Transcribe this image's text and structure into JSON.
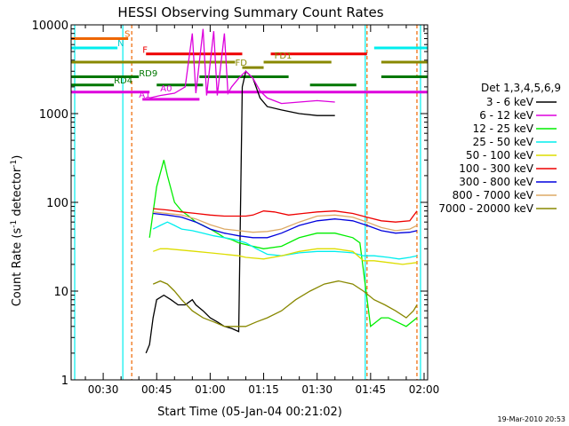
{
  "chart_data": {
    "type": "line",
    "title": "HESSI Observing Summary Count Rates",
    "xlabel": "Start Time (05-Jan-04 00:21:02)",
    "ylabel_main": "Count Rate (s",
    "ylabel_sup1": "-1",
    "ylabel_mid": " detector",
    "ylabel_sup2": "-1",
    "ylabel_end": ")",
    "xlim": [
      21,
      121
    ],
    "ylim": [
      1,
      10000
    ],
    "yscale": "log",
    "x_ticks": [
      {
        "v": 30,
        "label": "00:30"
      },
      {
        "v": 45,
        "label": "00:45"
      },
      {
        "v": 60,
        "label": "01:00"
      },
      {
        "v": 75,
        "label": "01:15"
      },
      {
        "v": 90,
        "label": "01:30"
      },
      {
        "v": 105,
        "label": "01:45"
      },
      {
        "v": 120,
        "label": "02:00"
      }
    ],
    "y_ticks": [
      {
        "v": 1,
        "label": "1"
      },
      {
        "v": 10,
        "label": "10"
      },
      {
        "v": 100,
        "label": "100"
      },
      {
        "v": 1000,
        "label": "1000"
      },
      {
        "v": 10000,
        "label": "10000"
      }
    ],
    "legend_title": "Det 1,3,4,5,6,9",
    "legend_position": "right",
    "footer": "19-Mar-2010 20:53",
    "series": [
      {
        "name": "3 - 6 keV",
        "color": "#000000",
        "values": [
          [
            42,
            2
          ],
          [
            43,
            2.5
          ],
          [
            44,
            5
          ],
          [
            45,
            8
          ],
          [
            47,
            9
          ],
          [
            49,
            8
          ],
          [
            51,
            7
          ],
          [
            53,
            7
          ],
          [
            55,
            8
          ],
          [
            56,
            7
          ],
          [
            58,
            6
          ],
          [
            60,
            5
          ],
          [
            62,
            4.5
          ],
          [
            64,
            4
          ],
          [
            66,
            3.8
          ],
          [
            68,
            3.5
          ],
          [
            69,
            2000
          ],
          [
            70,
            3000
          ],
          [
            72,
            2500
          ],
          [
            74,
            1500
          ],
          [
            76,
            1200
          ],
          [
            80,
            1100
          ],
          [
            85,
            1000
          ],
          [
            90,
            950
          ],
          [
            95,
            950
          ]
        ]
      },
      {
        "name": "6 - 12 keV",
        "color": "#dd00dd",
        "values": [
          [
            43,
            1500
          ],
          [
            46,
            1600
          ],
          [
            50,
            1700
          ],
          [
            53,
            2000
          ],
          [
            55,
            8000
          ],
          [
            56,
            1700
          ],
          [
            58,
            9000
          ],
          [
            59,
            1600
          ],
          [
            61,
            8500
          ],
          [
            62,
            1600
          ],
          [
            64,
            8000
          ],
          [
            65,
            1700
          ],
          [
            66,
            2000
          ],
          [
            68,
            2500
          ],
          [
            70,
            3000
          ],
          [
            72,
            2500
          ],
          [
            74,
            1800
          ],
          [
            76,
            1500
          ],
          [
            80,
            1300
          ],
          [
            85,
            1350
          ],
          [
            90,
            1400
          ],
          [
            95,
            1350
          ]
        ]
      },
      {
        "name": "12 - 25 keV",
        "color": "#00ee00",
        "values": [
          [
            43,
            40
          ],
          [
            45,
            150
          ],
          [
            47,
            300
          ],
          [
            48,
            200
          ],
          [
            50,
            100
          ],
          [
            52,
            80
          ],
          [
            54,
            70
          ],
          [
            56,
            60
          ],
          [
            58,
            55
          ],
          [
            60,
            50
          ],
          [
            62,
            45
          ],
          [
            64,
            40
          ],
          [
            66,
            38
          ],
          [
            68,
            35
          ],
          [
            72,
            32
          ],
          [
            75,
            30
          ],
          [
            80,
            32
          ],
          [
            85,
            40
          ],
          [
            90,
            45
          ],
          [
            95,
            45
          ],
          [
            100,
            40
          ],
          [
            102,
            35
          ],
          [
            105,
            4
          ],
          [
            108,
            5
          ],
          [
            110,
            5
          ],
          [
            115,
            4
          ],
          [
            118,
            5
          ]
        ]
      },
      {
        "name": "25 - 50 keV",
        "color": "#00eeee",
        "values": [
          [
            44,
            50
          ],
          [
            46,
            55
          ],
          [
            48,
            60
          ],
          [
            50,
            55
          ],
          [
            52,
            50
          ],
          [
            55,
            48
          ],
          [
            58,
            45
          ],
          [
            61,
            42
          ],
          [
            64,
            40
          ],
          [
            67,
            38
          ],
          [
            70,
            35
          ],
          [
            73,
            30
          ],
          [
            76,
            26
          ],
          [
            80,
            25
          ],
          [
            85,
            27
          ],
          [
            90,
            28
          ],
          [
            95,
            28
          ],
          [
            100,
            27
          ],
          [
            103,
            25
          ],
          [
            106,
            25
          ],
          [
            110,
            24
          ],
          [
            113,
            23
          ],
          [
            116,
            24
          ],
          [
            118,
            25
          ]
        ]
      },
      {
        "name": "50 - 100 keV",
        "color": "#dddd00",
        "values": [
          [
            44,
            28
          ],
          [
            46,
            30
          ],
          [
            48,
            30
          ],
          [
            52,
            29
          ],
          [
            56,
            28
          ],
          [
            60,
            27
          ],
          [
            64,
            26
          ],
          [
            68,
            25
          ],
          [
            70,
            24
          ],
          [
            75,
            23
          ],
          [
            80,
            25
          ],
          [
            85,
            28
          ],
          [
            90,
            30
          ],
          [
            95,
            30
          ],
          [
            100,
            28
          ],
          [
            103,
            22
          ],
          [
            106,
            22
          ],
          [
            110,
            21
          ],
          [
            114,
            20
          ],
          [
            118,
            21
          ]
        ]
      },
      {
        "name": "100 - 300 keV",
        "color": "#ee0000",
        "values": [
          [
            44,
            85
          ],
          [
            48,
            82
          ],
          [
            52,
            78
          ],
          [
            56,
            75
          ],
          [
            60,
            72
          ],
          [
            64,
            70
          ],
          [
            68,
            70
          ],
          [
            70,
            70
          ],
          [
            72,
            72
          ],
          [
            75,
            80
          ],
          [
            78,
            78
          ],
          [
            82,
            72
          ],
          [
            86,
            75
          ],
          [
            90,
            78
          ],
          [
            95,
            80
          ],
          [
            100,
            75
          ],
          [
            104,
            68
          ],
          [
            108,
            62
          ],
          [
            112,
            60
          ],
          [
            116,
            62
          ],
          [
            118,
            80
          ]
        ]
      },
      {
        "name": "300 - 800 keV",
        "color": "#0000dd",
        "values": [
          [
            44,
            75
          ],
          [
            48,
            72
          ],
          [
            52,
            68
          ],
          [
            56,
            60
          ],
          [
            60,
            50
          ],
          [
            64,
            45
          ],
          [
            68,
            42
          ],
          [
            72,
            40
          ],
          [
            76,
            40
          ],
          [
            80,
            45
          ],
          [
            85,
            55
          ],
          [
            90,
            62
          ],
          [
            95,
            65
          ],
          [
            100,
            62
          ],
          [
            104,
            55
          ],
          [
            108,
            48
          ],
          [
            112,
            45
          ],
          [
            116,
            46
          ],
          [
            118,
            48
          ]
        ]
      },
      {
        "name": "800 - 7000 keV",
        "color": "#ddaa66",
        "values": [
          [
            44,
            78
          ],
          [
            48,
            75
          ],
          [
            52,
            72
          ],
          [
            56,
            65
          ],
          [
            60,
            56
          ],
          [
            64,
            50
          ],
          [
            68,
            48
          ],
          [
            72,
            46
          ],
          [
            76,
            47
          ],
          [
            80,
            50
          ],
          [
            85,
            60
          ],
          [
            90,
            70
          ],
          [
            95,
            72
          ],
          [
            100,
            68
          ],
          [
            104,
            60
          ],
          [
            108,
            52
          ],
          [
            112,
            48
          ],
          [
            116,
            50
          ],
          [
            118,
            55
          ]
        ]
      },
      {
        "name": "7000 - 20000 keV",
        "color": "#888800",
        "values": [
          [
            44,
            12
          ],
          [
            46,
            13
          ],
          [
            48,
            12
          ],
          [
            50,
            10
          ],
          [
            52,
            8
          ],
          [
            55,
            6
          ],
          [
            58,
            5
          ],
          [
            61,
            4.5
          ],
          [
            64,
            4
          ],
          [
            67,
            4
          ],
          [
            70,
            4
          ],
          [
            73,
            4.5
          ],
          [
            76,
            5
          ],
          [
            80,
            6
          ],
          [
            84,
            8
          ],
          [
            88,
            10
          ],
          [
            92,
            12
          ],
          [
            96,
            13
          ],
          [
            100,
            12
          ],
          [
            103,
            10
          ],
          [
            106,
            8
          ],
          [
            109,
            7
          ],
          [
            112,
            6
          ],
          [
            115,
            5
          ],
          [
            117,
            6
          ],
          [
            118,
            7
          ]
        ]
      }
    ],
    "annotations": [
      {
        "text": "S",
        "x": 36,
        "y": 7000,
        "color": "#ee6600"
      },
      {
        "text": "N",
        "x": 34,
        "y": 5500,
        "color": "#00cccc"
      },
      {
        "text": "F",
        "x": 41,
        "y": 4600,
        "color": "#ee0000"
      },
      {
        "text": "FD1",
        "x": 78,
        "y": 4000,
        "color": "#888800"
      },
      {
        "text": "FD",
        "x": 67,
        "y": 3300,
        "color": "#888800"
      },
      {
        "text": "RD9",
        "x": 40,
        "y": 2500,
        "color": "#007700"
      },
      {
        "text": "RD4",
        "x": 33,
        "y": 2100,
        "color": "#007700"
      },
      {
        "text": "A0",
        "x": 46,
        "y": 1700,
        "color": "#dd00dd"
      },
      {
        "text": "A1",
        "x": 40,
        "y": 1450,
        "color": "#dd00dd"
      }
    ],
    "flag_bars": [
      {
        "color": "#ee6600",
        "segments": [
          [
            21,
            37
          ]
        ],
        "y": 7000
      },
      {
        "color": "#00eeee",
        "segments": [
          [
            21,
            34
          ],
          [
            106,
            121
          ]
        ],
        "y": 5500
      },
      {
        "color": "#ee0000",
        "segments": [
          [
            42,
            69
          ],
          [
            77,
            104
          ]
        ],
        "y": 4700
      },
      {
        "color": "#888800",
        "segments": [
          [
            21,
            67
          ],
          [
            75,
            94
          ],
          [
            108,
            121
          ]
        ],
        "y": 3800
      },
      {
        "color": "#888800",
        "segments": [
          [
            69,
            75
          ]
        ],
        "y": 3300
      },
      {
        "color": "#007700",
        "segments": [
          [
            21,
            40
          ],
          [
            57,
            82
          ],
          [
            108,
            121
          ]
        ],
        "y": 2600
      },
      {
        "color": "#007700",
        "segments": [
          [
            21,
            33
          ],
          [
            45,
            58
          ],
          [
            88,
            101
          ]
        ],
        "y": 2100
      },
      {
        "color": "#dd00dd",
        "segments": [
          [
            21,
            43
          ],
          [
            59,
            121
          ]
        ],
        "y": 1750
      },
      {
        "color": "#dd00dd",
        "segments": [
          [
            41,
            57
          ]
        ],
        "y": 1450
      }
    ],
    "vlines": [
      {
        "x": 22,
        "color": "#00eeee"
      },
      {
        "x": 35.5,
        "color": "#00eeee"
      },
      {
        "x": 38,
        "color": "#ee6600",
        "dashed": true
      },
      {
        "x": 103.5,
        "color": "#00eeee"
      },
      {
        "x": 104,
        "color": "#ee6600",
        "dashed": true
      },
      {
        "x": 118,
        "color": "#ee6600",
        "dashed": true
      },
      {
        "x": 119,
        "color": "#00eeee"
      }
    ]
  }
}
